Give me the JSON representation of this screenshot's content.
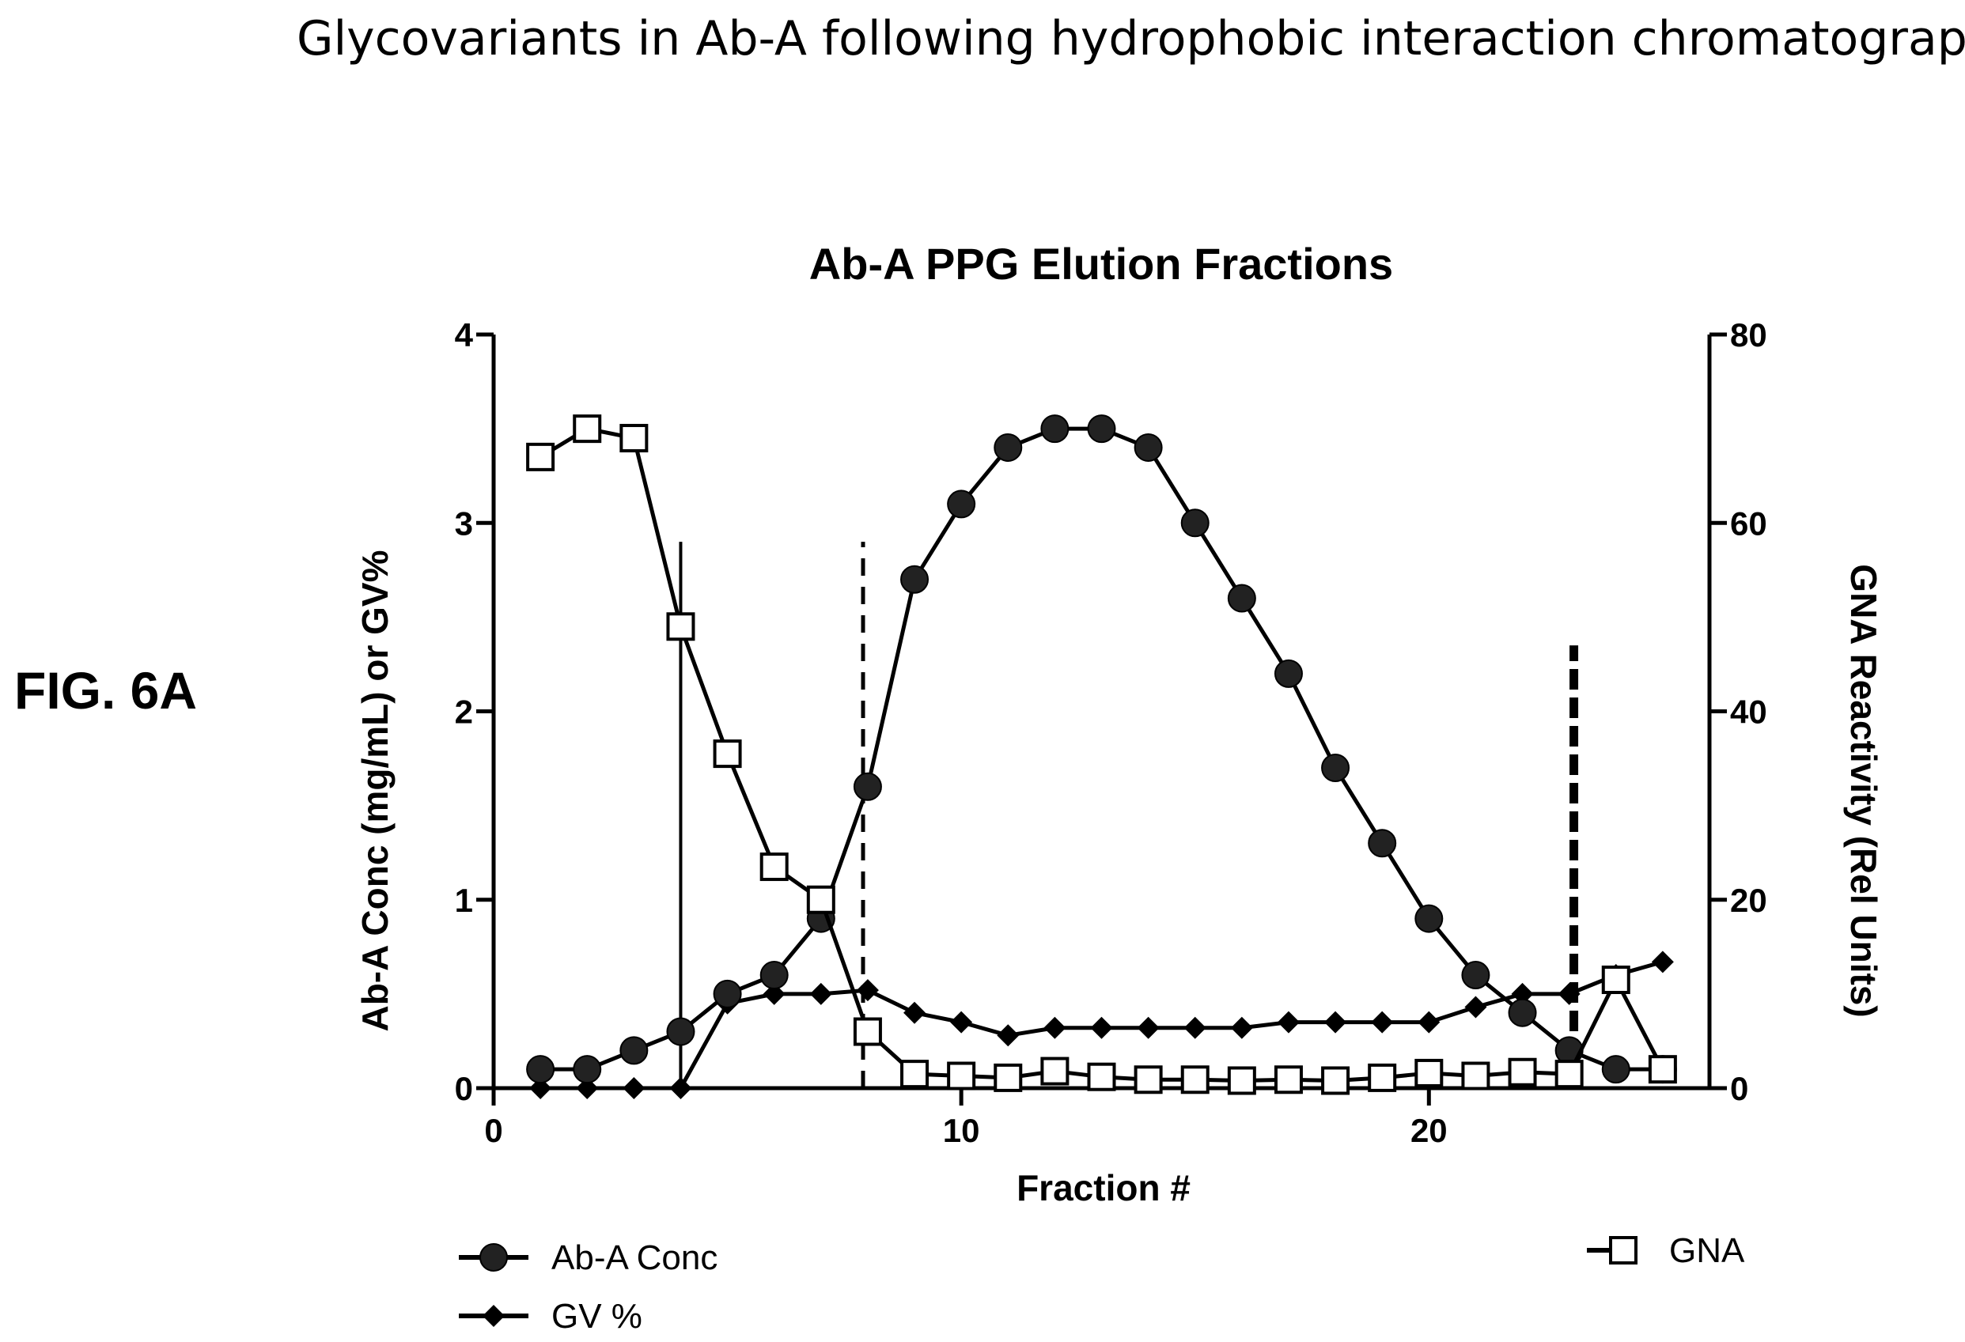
{
  "caption": "Glycovariants in Ab-A following hydrophobic interaction chromatography.",
  "figure_label": "FIG. 6A",
  "chart_data": {
    "type": "line",
    "title": "Ab-A PPG Elution Fractions",
    "xlabel": "Fraction #",
    "ylabel_left": "Ab-A Conc (mg/mL) or GV%",
    "ylabel_right": "GNA Reactivity (Rel Units)",
    "xlim": [
      0,
      26
    ],
    "ylim_left": [
      0,
      4
    ],
    "ylim_right": [
      0,
      80
    ],
    "x_ticks": [
      0,
      10,
      20
    ],
    "y_ticks_left": [
      0,
      1,
      2,
      3,
      4
    ],
    "y_ticks_right": [
      0,
      20,
      40,
      60,
      80
    ],
    "grid": false,
    "series": [
      {
        "name": "Ab-A Conc",
        "axis": "left",
        "marker": "circle",
        "x": [
          1,
          2,
          3,
          4,
          5,
          6,
          7,
          8,
          9,
          10,
          11,
          12,
          13,
          14,
          15,
          16,
          17,
          18,
          19,
          20,
          21,
          22,
          23,
          24,
          25
        ],
        "y": [
          0.1,
          0.1,
          0.2,
          0.3,
          0.5,
          0.6,
          0.9,
          1.6,
          2.7,
          3.1,
          3.4,
          3.5,
          3.5,
          3.4,
          3.0,
          2.6,
          2.2,
          1.7,
          1.3,
          0.9,
          0.6,
          0.4,
          0.2,
          0.1,
          0.1
        ]
      },
      {
        "name": "GV %",
        "axis": "left",
        "marker": "diamond",
        "x": [
          1,
          2,
          3,
          4,
          5,
          6,
          7,
          8,
          9,
          10,
          11,
          12,
          13,
          14,
          15,
          16,
          17,
          18,
          19,
          20,
          21,
          22,
          23,
          24,
          25
        ],
        "y": [
          0,
          0,
          0,
          0,
          0.45,
          0.5,
          0.5,
          0.52,
          0.4,
          0.35,
          0.28,
          0.32,
          0.32,
          0.32,
          0.32,
          0.32,
          0.35,
          0.35,
          0.35,
          0.35,
          0.43,
          0.5,
          0.5,
          0.6,
          0.67
        ]
      },
      {
        "name": "GNA",
        "axis": "right",
        "marker": "square-open",
        "x": [
          1,
          2,
          3,
          4,
          5,
          6,
          7,
          8,
          9,
          10,
          11,
          12,
          13,
          14,
          15,
          16,
          17,
          18,
          19,
          20,
          21,
          22,
          23,
          24,
          25
        ],
        "y": [
          67,
          70,
          69,
          49,
          35.5,
          23.5,
          20,
          6,
          1.5,
          1.3,
          1.1,
          1.8,
          1.2,
          0.9,
          0.9,
          0.8,
          0.9,
          0.8,
          1.1,
          1.6,
          1.3,
          1.7,
          1.5,
          11.5,
          2
        ]
      }
    ],
    "vertical_lines": [
      {
        "x": 4,
        "style": "solid",
        "top": 2.9
      },
      {
        "x": 7.9,
        "style": "dashed",
        "top": 2.9
      },
      {
        "x": 23.1,
        "style": "dashed-bold",
        "top": 2.35
      }
    ],
    "legend": [
      {
        "label": "Ab-A Conc",
        "marker": "circle",
        "position": "bottom-left"
      },
      {
        "label": "GV %",
        "marker": "diamond",
        "position": "bottom-left"
      },
      {
        "label": "GNA",
        "marker": "square-open",
        "position": "bottom-right"
      }
    ]
  }
}
